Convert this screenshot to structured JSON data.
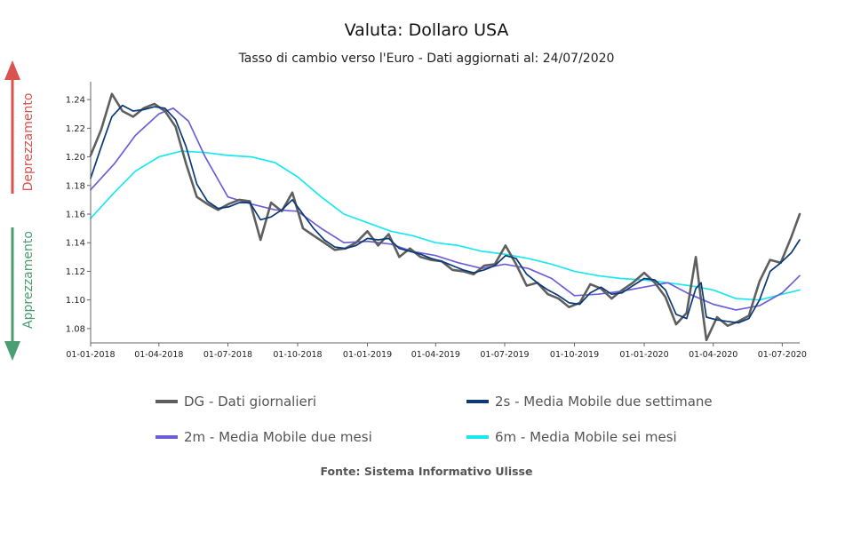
{
  "chart_data": {
    "type": "line",
    "title": "Valuta: Dollaro USA",
    "subtitle": "Tasso di cambio verso l'Euro - Dati aggiornati al: 24/07/2020",
    "source": "Fonte: Sistema Informativo Ulisse",
    "side_labels": {
      "up": "Deprezzamento",
      "down": "Apprezzamento"
    },
    "ylim": [
      1.07,
      1.25
    ],
    "yticks": [
      "1.08",
      "1.10",
      "1.12",
      "1.14",
      "1.16",
      "1.18",
      "1.20",
      "1.22",
      "1.24"
    ],
    "x_range": [
      "2018-01-01",
      "2020-07-24"
    ],
    "xtick_labels": [
      "01-01-2018",
      "01-04-2018",
      "01-07-2018",
      "01-10-2018",
      "01-01-2019",
      "01-04-2019",
      "01-07-2019",
      "01-10-2019",
      "01-01-2020",
      "01-04-2020",
      "01-07-2020"
    ],
    "xtick_dates": [
      "2018-01-01",
      "2018-04-01",
      "2018-07-01",
      "2018-10-01",
      "2019-01-01",
      "2019-04-01",
      "2019-07-01",
      "2019-10-01",
      "2020-01-01",
      "2020-04-01",
      "2020-07-01"
    ],
    "legend_position": "bottom",
    "series": [
      {
        "name": "DG - Dati giornalieri",
        "color": "#5f5f5f",
        "width": 2.6,
        "x": [
          "2018-01-01",
          "2018-01-15",
          "2018-01-29",
          "2018-02-12",
          "2018-02-26",
          "2018-03-12",
          "2018-03-26",
          "2018-04-09",
          "2018-04-23",
          "2018-05-07",
          "2018-05-21",
          "2018-06-04",
          "2018-06-18",
          "2018-07-02",
          "2018-07-16",
          "2018-07-30",
          "2018-08-13",
          "2018-08-27",
          "2018-09-10",
          "2018-09-24",
          "2018-10-08",
          "2018-10-22",
          "2018-11-05",
          "2018-11-19",
          "2018-12-03",
          "2018-12-17",
          "2019-01-01",
          "2019-01-15",
          "2019-01-29",
          "2019-02-12",
          "2019-02-26",
          "2019-03-12",
          "2019-03-26",
          "2019-04-09",
          "2019-04-23",
          "2019-05-07",
          "2019-05-21",
          "2019-06-04",
          "2019-06-18",
          "2019-07-02",
          "2019-07-16",
          "2019-07-30",
          "2019-08-13",
          "2019-08-27",
          "2019-09-10",
          "2019-09-24",
          "2019-10-08",
          "2019-10-22",
          "2019-11-05",
          "2019-11-19",
          "2019-12-03",
          "2019-12-17",
          "2020-01-01",
          "2020-01-15",
          "2020-01-29",
          "2020-02-12",
          "2020-02-26",
          "2020-03-09",
          "2020-03-16",
          "2020-03-23",
          "2020-04-06",
          "2020-04-20",
          "2020-05-04",
          "2020-05-18",
          "2020-06-01",
          "2020-06-15",
          "2020-06-29",
          "2020-07-13",
          "2020-07-24"
        ],
        "values": [
          1.201,
          1.219,
          1.244,
          1.232,
          1.228,
          1.234,
          1.237,
          1.232,
          1.221,
          1.195,
          1.172,
          1.167,
          1.163,
          1.167,
          1.17,
          1.169,
          1.142,
          1.168,
          1.162,
          1.175,
          1.15,
          1.145,
          1.14,
          1.135,
          1.136,
          1.14,
          1.148,
          1.138,
          1.146,
          1.13,
          1.136,
          1.13,
          1.128,
          1.127,
          1.121,
          1.12,
          1.118,
          1.124,
          1.125,
          1.138,
          1.125,
          1.11,
          1.112,
          1.104,
          1.101,
          1.095,
          1.098,
          1.111,
          1.108,
          1.101,
          1.107,
          1.112,
          1.119,
          1.112,
          1.102,
          1.083,
          1.091,
          1.13,
          1.1,
          1.072,
          1.088,
          1.082,
          1.085,
          1.089,
          1.113,
          1.128,
          1.126,
          1.144,
          1.16
        ]
      },
      {
        "name": "2s - Media Mobile due settimane",
        "color": "#0a3a78",
        "width": 1.7,
        "x": [
          "2018-01-01",
          "2018-01-15",
          "2018-01-29",
          "2018-02-12",
          "2018-02-26",
          "2018-03-12",
          "2018-03-26",
          "2018-04-09",
          "2018-04-23",
          "2018-05-07",
          "2018-05-21",
          "2018-06-04",
          "2018-06-18",
          "2018-07-02",
          "2018-07-16",
          "2018-07-30",
          "2018-08-13",
          "2018-08-27",
          "2018-09-10",
          "2018-09-24",
          "2018-10-08",
          "2018-10-22",
          "2018-11-05",
          "2018-11-19",
          "2018-12-03",
          "2018-12-17",
          "2019-01-01",
          "2019-01-15",
          "2019-01-29",
          "2019-02-12",
          "2019-02-26",
          "2019-03-12",
          "2019-03-26",
          "2019-04-09",
          "2019-04-23",
          "2019-05-07",
          "2019-05-21",
          "2019-06-04",
          "2019-06-18",
          "2019-07-02",
          "2019-07-16",
          "2019-07-30",
          "2019-08-13",
          "2019-08-27",
          "2019-09-10",
          "2019-09-24",
          "2019-10-08",
          "2019-10-22",
          "2019-11-05",
          "2019-11-19",
          "2019-12-03",
          "2019-12-17",
          "2020-01-01",
          "2020-01-15",
          "2020-01-29",
          "2020-02-12",
          "2020-02-26",
          "2020-03-09",
          "2020-03-16",
          "2020-03-23",
          "2020-04-06",
          "2020-04-20",
          "2020-05-04",
          "2020-05-18",
          "2020-06-01",
          "2020-06-15",
          "2020-06-29",
          "2020-07-13",
          "2020-07-24"
        ],
        "values": [
          1.185,
          1.207,
          1.228,
          1.236,
          1.232,
          1.233,
          1.235,
          1.234,
          1.226,
          1.207,
          1.181,
          1.169,
          1.164,
          1.165,
          1.168,
          1.168,
          1.156,
          1.158,
          1.163,
          1.17,
          1.16,
          1.15,
          1.142,
          1.137,
          1.136,
          1.138,
          1.143,
          1.142,
          1.143,
          1.136,
          1.134,
          1.132,
          1.129,
          1.127,
          1.124,
          1.121,
          1.119,
          1.121,
          1.124,
          1.131,
          1.129,
          1.118,
          1.112,
          1.107,
          1.103,
          1.098,
          1.097,
          1.105,
          1.109,
          1.104,
          1.105,
          1.11,
          1.115,
          1.114,
          1.107,
          1.09,
          1.087,
          1.108,
          1.112,
          1.088,
          1.086,
          1.085,
          1.084,
          1.087,
          1.1,
          1.12,
          1.126,
          1.133,
          1.142
        ]
      },
      {
        "name": "2m - Media Mobile due mesi",
        "color": "#6b5fd6",
        "width": 1.7,
        "x": [
          "2018-01-01",
          "2018-02-01",
          "2018-03-01",
          "2018-04-01",
          "2018-04-20",
          "2018-05-10",
          "2018-06-01",
          "2018-07-01",
          "2018-08-01",
          "2018-09-01",
          "2018-10-01",
          "2018-11-01",
          "2018-12-01",
          "2019-01-01",
          "2019-02-01",
          "2019-03-01",
          "2019-04-01",
          "2019-05-01",
          "2019-06-01",
          "2019-07-01",
          "2019-08-01",
          "2019-09-01",
          "2019-10-01",
          "2019-11-01",
          "2019-12-01",
          "2020-01-01",
          "2020-02-01",
          "2020-03-01",
          "2020-04-01",
          "2020-05-01",
          "2020-06-01",
          "2020-07-01",
          "2020-07-24"
        ],
        "values": [
          1.177,
          1.195,
          1.215,
          1.23,
          1.234,
          1.225,
          1.2,
          1.172,
          1.167,
          1.163,
          1.162,
          1.15,
          1.14,
          1.141,
          1.139,
          1.134,
          1.131,
          1.126,
          1.122,
          1.125,
          1.122,
          1.115,
          1.103,
          1.104,
          1.106,
          1.109,
          1.112,
          1.104,
          1.097,
          1.093,
          1.096,
          1.105,
          1.117
        ]
      },
      {
        "name": "6m - Media Mobile sei mesi",
        "color": "#1ae8f0",
        "width": 1.7,
        "x": [
          "2018-01-01",
          "2018-02-01",
          "2018-03-01",
          "2018-04-01",
          "2018-05-01",
          "2018-06-01",
          "2018-07-01",
          "2018-08-01",
          "2018-09-01",
          "2018-10-01",
          "2018-11-01",
          "2018-12-01",
          "2019-01-01",
          "2019-02-01",
          "2019-03-01",
          "2019-04-01",
          "2019-05-01",
          "2019-06-01",
          "2019-07-01",
          "2019-08-01",
          "2019-09-01",
          "2019-10-01",
          "2019-11-01",
          "2019-12-01",
          "2020-01-01",
          "2020-02-01",
          "2020-03-01",
          "2020-04-01",
          "2020-05-01",
          "2020-06-01",
          "2020-07-01",
          "2020-07-24"
        ],
        "values": [
          1.157,
          1.175,
          1.19,
          1.2,
          1.204,
          1.203,
          1.201,
          1.2,
          1.196,
          1.186,
          1.172,
          1.16,
          1.154,
          1.148,
          1.145,
          1.14,
          1.138,
          1.134,
          1.132,
          1.129,
          1.125,
          1.12,
          1.117,
          1.115,
          1.114,
          1.112,
          1.11,
          1.107,
          1.101,
          1.1,
          1.104,
          1.107
        ]
      }
    ]
  }
}
